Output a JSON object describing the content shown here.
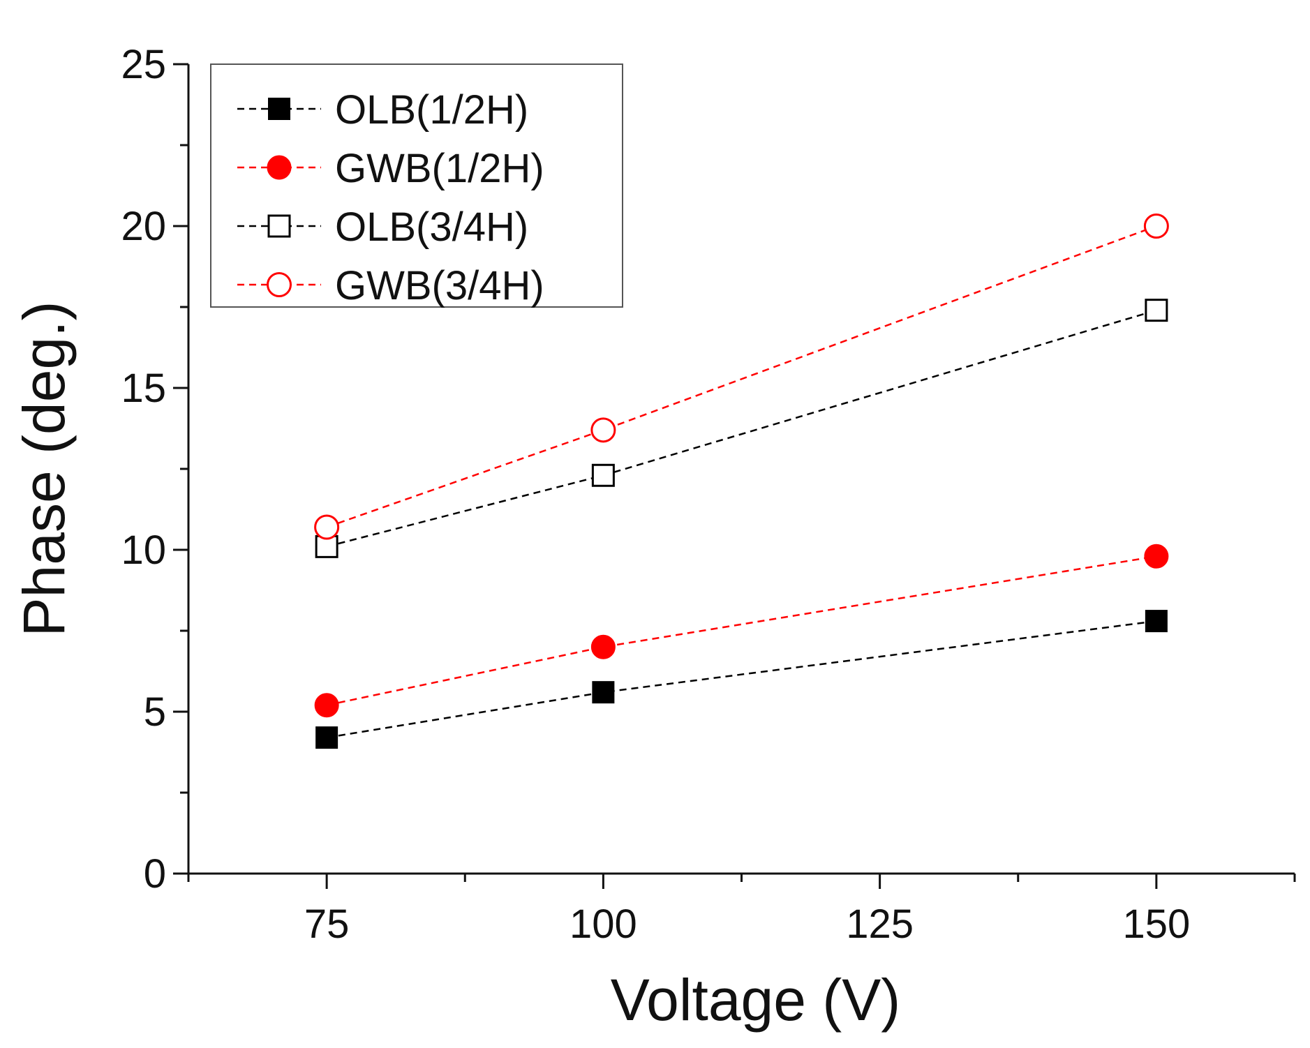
{
  "chart_data": {
    "type": "line",
    "xlabel": "Voltage (V)",
    "ylabel": "Phase (deg.)",
    "xlim": [
      62.5,
      162.5
    ],
    "ylim": [
      0,
      25
    ],
    "xticks": [
      75,
      100,
      125,
      150
    ],
    "yticks": [
      0,
      5,
      10,
      15,
      20,
      25
    ],
    "grid": false,
    "legend_position": "top-left",
    "x": [
      75,
      100,
      150
    ],
    "series": [
      {
        "name": "OLB(1/2H)",
        "values": [
          4.2,
          5.6,
          7.8
        ],
        "color": "#000000",
        "marker": "square-filled",
        "line": "dashed"
      },
      {
        "name": "GWB(1/2H)",
        "values": [
          5.2,
          7.0,
          9.8
        ],
        "color": "#ff0000",
        "marker": "circle-filled",
        "line": "dashed"
      },
      {
        "name": "OLB(3/4H)",
        "values": [
          10.1,
          12.3,
          17.4
        ],
        "color": "#000000",
        "marker": "square-open",
        "line": "dashed"
      },
      {
        "name": "GWB(3/4H)",
        "values": [
          10.7,
          13.7,
          20.0
        ],
        "color": "#ff0000",
        "marker": "circle-open",
        "line": "dashed"
      }
    ]
  }
}
